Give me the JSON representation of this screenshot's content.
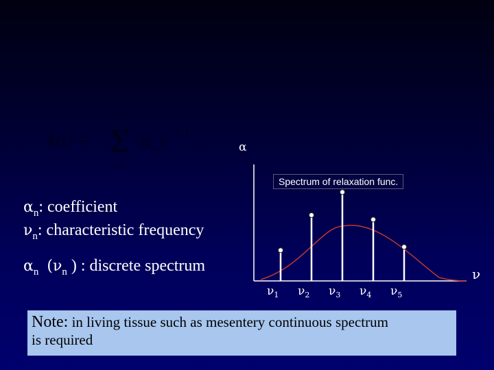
{
  "formula": {
    "lhs": "k(t) =",
    "sum": "Σ",
    "upper": "N",
    "lower": "n=0",
    "term": "α",
    "term_sub": "n",
    "exp_base": "e",
    "exponent": "−ν t"
  },
  "alpha_label": "α",
  "spectrum_title": "Spectrum of relaxation func.",
  "definitions": {
    "alpha_symbol": "α",
    "alpha_sub": "n",
    "alpha_text": ": coefficient",
    "nu_symbol": "ν",
    "nu_sub": "n",
    "nu_text": ": characteristic frequency",
    "spec_symbol": "α",
    "spec_sub": "n",
    "spec_open": "(ν",
    "spec_sub2": "n",
    "spec_text": ") : discrete spectrum"
  },
  "axis_label_nu": "ν",
  "chart_data": {
    "type": "scatter",
    "tick_symbol": "ν",
    "x": [
      "1",
      "2",
      "3",
      "4",
      "5"
    ],
    "values": [
      0.28,
      0.6,
      0.81,
      0.56,
      0.31
    ],
    "ylim": [
      0,
      1
    ],
    "curve": "bell-shaped continuous envelope"
  },
  "note": {
    "prefix": "Note:",
    "line1": " in living tissue such as mesentery continuous spectrum",
    "line2": "is required"
  },
  "colors": {
    "note_bg": "#a8c6ee",
    "bg_bottom": "#00006e",
    "curve": "#c0392b"
  }
}
